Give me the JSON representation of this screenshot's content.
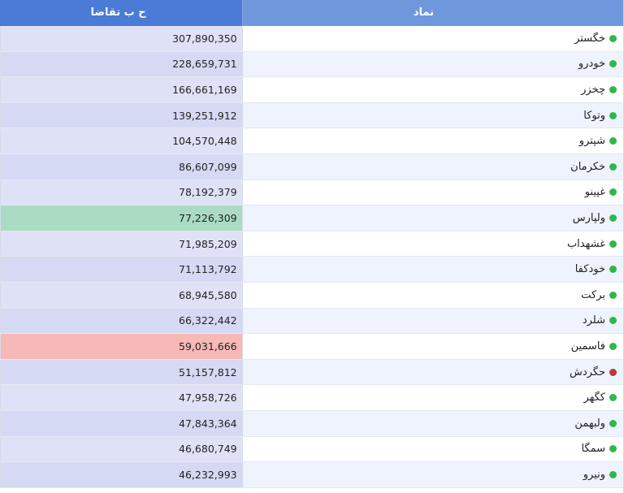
{
  "table": {
    "headers": {
      "demand": "ح ب تقاضا",
      "symbol": "نماد"
    },
    "colors": {
      "status_green": "#2fb84a",
      "status_red": "#b83a3a",
      "highlight_green": "#a9dcc2",
      "highlight_red": "#f7b8b8"
    },
    "rows": [
      {
        "symbol": "خگستر",
        "demand": "307,890,350",
        "status": "green",
        "highlight": ""
      },
      {
        "symbol": "خودرو",
        "demand": "228,659,731",
        "status": "green",
        "highlight": ""
      },
      {
        "symbol": "چخزر",
        "demand": "166,661,169",
        "status": "green",
        "highlight": ""
      },
      {
        "symbol": "وتوکا",
        "demand": "139,251,912",
        "status": "green",
        "highlight": ""
      },
      {
        "symbol": "شپترو",
        "demand": "104,570,448",
        "status": "green",
        "highlight": ""
      },
      {
        "symbol": "خکرمان",
        "demand": "86,607,099",
        "status": "green",
        "highlight": ""
      },
      {
        "symbol": "غپینو",
        "demand": "78,192,379",
        "status": "green",
        "highlight": ""
      },
      {
        "symbol": "ولپارس",
        "demand": "77,226,309",
        "status": "green",
        "highlight": "green"
      },
      {
        "symbol": "غشهداب",
        "demand": "71,985,209",
        "status": "green",
        "highlight": ""
      },
      {
        "symbol": "خودکفا",
        "demand": "71,113,792",
        "status": "green",
        "highlight": ""
      },
      {
        "symbol": "برکت",
        "demand": "68,945,580",
        "status": "green",
        "highlight": ""
      },
      {
        "symbol": "شلرد",
        "demand": "66,322,442",
        "status": "green",
        "highlight": ""
      },
      {
        "symbol": "فاسمین",
        "demand": "59,031,666",
        "status": "green",
        "highlight": "red"
      },
      {
        "symbol": "حگردش",
        "demand": "51,157,812",
        "status": "red",
        "highlight": ""
      },
      {
        "symbol": "کگهر",
        "demand": "47,958,726",
        "status": "green",
        "highlight": ""
      },
      {
        "symbol": "ولبهمن",
        "demand": "47,843,364",
        "status": "green",
        "highlight": ""
      },
      {
        "symbol": "سمگا",
        "demand": "46,680,749",
        "status": "green",
        "highlight": ""
      },
      {
        "symbol": "ونیرو",
        "demand": "46,232,993",
        "status": "green",
        "highlight": ""
      }
    ]
  }
}
